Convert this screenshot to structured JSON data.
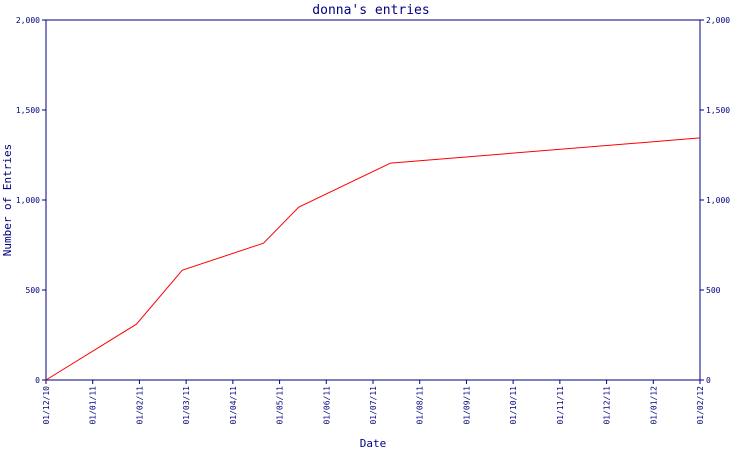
{
  "chart_data": {
    "type": "line",
    "title": "donna's entries",
    "xlabel": "Date",
    "ylabel": "Number of Entries",
    "ylim": [
      0,
      2000
    ],
    "y_ticks": [
      0,
      500,
      1000,
      1500,
      2000
    ],
    "y_tick_labels": [
      "0",
      "500",
      "1,000",
      "1,500",
      "2,000"
    ],
    "x_tick_labels": [
      "01/12/10",
      "01/01/11",
      "01/02/11",
      "01/03/11",
      "01/04/11",
      "01/05/11",
      "01/06/11",
      "01/07/11",
      "01/08/11",
      "01/09/11",
      "01/10/11",
      "01/11/11",
      "01/12/11",
      "01/01/12",
      "01/02/12"
    ],
    "xlim": [
      "2010-12-01",
      "2012-02-01"
    ],
    "grid": false,
    "line_color": "#ff0000",
    "axis_color": "#000080",
    "series": [
      {
        "x": [
          "2010-12-01",
          "2011-01-29",
          "2011-02-28",
          "2011-04-22",
          "2011-05-15",
          "2011-07-14",
          "2012-02-01"
        ],
        "values": [
          0,
          310,
          610,
          760,
          960,
          1205,
          1345
        ]
      }
    ]
  }
}
